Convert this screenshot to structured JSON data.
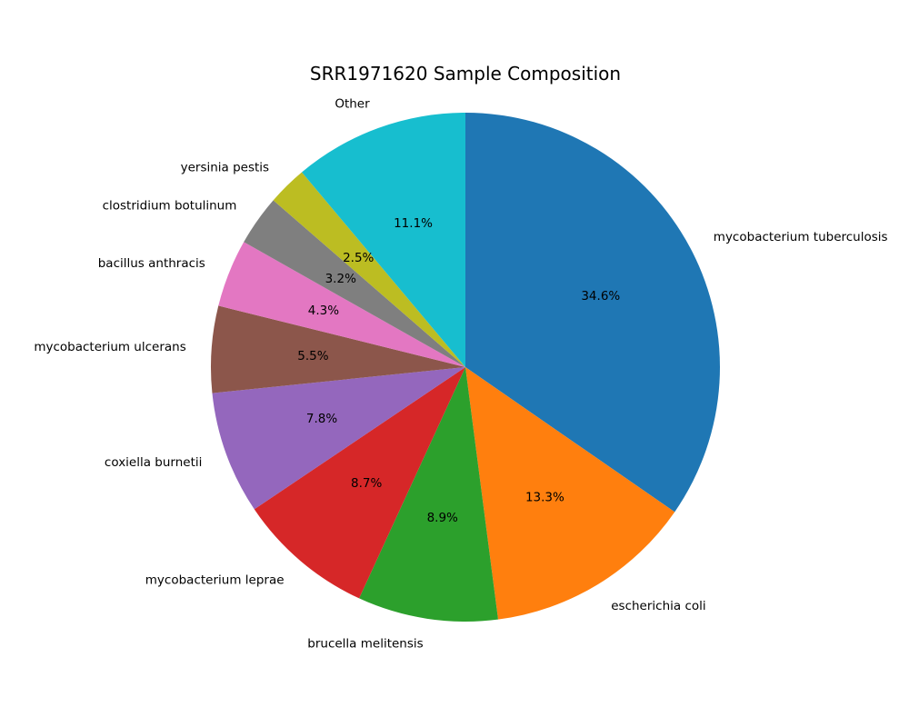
{
  "chart_data": {
    "type": "pie",
    "title": "SRR1971620 Sample Composition",
    "start_angle_deg": 90,
    "direction": "clockwise",
    "slices": [
      {
        "label": "mycobacterium tuberculosis",
        "value": 34.6,
        "pct_label": "34.6%",
        "color": "#1f77b4"
      },
      {
        "label": "escherichia coli",
        "value": 13.3,
        "pct_label": "13.3%",
        "color": "#ff7f0e"
      },
      {
        "label": "brucella melitensis",
        "value": 8.9,
        "pct_label": "8.9%",
        "color": "#2ca02c"
      },
      {
        "label": "mycobacterium leprae",
        "value": 8.7,
        "pct_label": "8.7%",
        "color": "#d62728"
      },
      {
        "label": "coxiella burnetii",
        "value": 7.8,
        "pct_label": "7.8%",
        "color": "#9467bd"
      },
      {
        "label": "mycobacterium ulcerans",
        "value": 5.5,
        "pct_label": "5.5%",
        "color": "#8c564b"
      },
      {
        "label": "bacillus anthracis",
        "value": 4.3,
        "pct_label": "4.3%",
        "color": "#e377c2"
      },
      {
        "label": "clostridium botulinum",
        "value": 3.2,
        "pct_label": "3.2%",
        "color": "#7f7f7f"
      },
      {
        "label": "yersinia pestis",
        "value": 2.5,
        "pct_label": "2.5%",
        "color": "#bcbd22"
      },
      {
        "label": "Other",
        "value": 11.1,
        "pct_label": "11.1%",
        "color": "#17becf"
      }
    ]
  }
}
